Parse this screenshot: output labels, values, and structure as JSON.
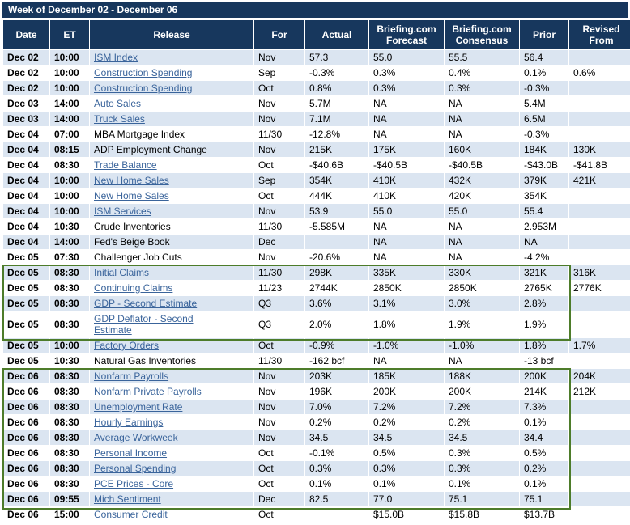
{
  "title": "Week of December 02 - December 06",
  "columns": [
    "Date",
    "ET",
    "Release",
    "For",
    "Actual",
    "Briefing.com\nForecast",
    "Briefing.com\nConsensus",
    "Prior",
    "Revised\nFrom"
  ],
  "colors": {
    "header_bg": "#17375D",
    "row_alt_blue": "#DBE5F1",
    "row_white": "#FFFFFF",
    "link_blue": "#3A649B",
    "highlight_green": "#4d7c2a"
  },
  "rows": [
    {
      "date": "Dec 02",
      "et": "10:00",
      "release": "ISM Index",
      "link": true,
      "for": "Nov",
      "actual": "57.3",
      "forecast": "55.0",
      "consensus": "55.5",
      "prior": "56.4",
      "revised": ""
    },
    {
      "date": "Dec 02",
      "et": "10:00",
      "release": "Construction Spending",
      "link": true,
      "for": "Sep",
      "actual": "-0.3%",
      "forecast": "0.3%",
      "consensus": "0.4%",
      "prior": "0.1%",
      "revised": "0.6%"
    },
    {
      "date": "Dec 02",
      "et": "10:00",
      "release": "Construction Spending",
      "link": true,
      "for": "Oct",
      "actual": "0.8%",
      "forecast": "0.3%",
      "consensus": "0.3%",
      "prior": "-0.3%",
      "revised": ""
    },
    {
      "date": "Dec 03",
      "et": "14:00",
      "release": "Auto Sales",
      "link": true,
      "for": "Nov",
      "actual": "5.7M",
      "forecast": "NA",
      "consensus": "NA",
      "prior": "5.4M",
      "revised": ""
    },
    {
      "date": "Dec 03",
      "et": "14:00",
      "release": "Truck Sales",
      "link": true,
      "for": "Nov",
      "actual": "7.1M",
      "forecast": "NA",
      "consensus": "NA",
      "prior": "6.5M",
      "revised": ""
    },
    {
      "date": "Dec 04",
      "et": "07:00",
      "release": "MBA Mortgage Index",
      "link": false,
      "for": "11/30",
      "actual": "-12.8%",
      "forecast": "NA",
      "consensus": "NA",
      "prior": "-0.3%",
      "revised": ""
    },
    {
      "date": "Dec 04",
      "et": "08:15",
      "release": "ADP Employment Change",
      "link": false,
      "for": "Nov",
      "actual": "215K",
      "forecast": "175K",
      "consensus": "160K",
      "prior": "184K",
      "revised": "130K"
    },
    {
      "date": "Dec 04",
      "et": "08:30",
      "release": "Trade Balance",
      "link": true,
      "for": "Oct",
      "actual": "-$40.6B",
      "forecast": "-$40.5B",
      "consensus": "-$40.5B",
      "prior": "-$43.0B",
      "revised": "-$41.8B"
    },
    {
      "date": "Dec 04",
      "et": "10:00",
      "release": "New Home Sales",
      "link": true,
      "for": "Sep",
      "actual": "354K",
      "forecast": "410K",
      "consensus": "432K",
      "prior": "379K",
      "revised": "421K"
    },
    {
      "date": "Dec 04",
      "et": "10:00",
      "release": "New Home Sales",
      "link": true,
      "for": "Oct",
      "actual": "444K",
      "forecast": "410K",
      "consensus": "420K",
      "prior": "354K",
      "revised": ""
    },
    {
      "date": "Dec 04",
      "et": "10:00",
      "release": "ISM Services",
      "link": true,
      "for": "Nov",
      "actual": "53.9",
      "forecast": "55.0",
      "consensus": "55.0",
      "prior": "55.4",
      "revised": ""
    },
    {
      "date": "Dec 04",
      "et": "10:30",
      "release": "Crude Inventories",
      "link": false,
      "for": "11/30",
      "actual": "-5.585M",
      "forecast": "NA",
      "consensus": "NA",
      "prior": "2.953M",
      "revised": ""
    },
    {
      "date": "Dec 04",
      "et": "14:00",
      "release": "Fed's Beige Book",
      "link": false,
      "for": "Dec",
      "actual": "",
      "forecast": "NA",
      "consensus": "NA",
      "prior": "NA",
      "revised": ""
    },
    {
      "date": "Dec 05",
      "et": "07:30",
      "release": "Challenger Job Cuts",
      "link": false,
      "for": "Nov",
      "actual": "-20.6%",
      "forecast": "NA",
      "consensus": "NA",
      "prior": "-4.2%",
      "revised": ""
    },
    {
      "date": "Dec 05",
      "et": "08:30",
      "release": "Initial Claims",
      "link": true,
      "for": "11/30",
      "actual": "298K",
      "forecast": "335K",
      "consensus": "330K",
      "prior": "321K",
      "revised": "316K"
    },
    {
      "date": "Dec 05",
      "et": "08:30",
      "release": "Continuing Claims",
      "link": true,
      "for": "11/23",
      "actual": "2744K",
      "forecast": "2850K",
      "consensus": "2850K",
      "prior": "2765K",
      "revised": "2776K"
    },
    {
      "date": "Dec 05",
      "et": "08:30",
      "release": "GDP - Second Estimate",
      "link": true,
      "for": "Q3",
      "actual": "3.6%",
      "forecast": "3.1%",
      "consensus": "3.0%",
      "prior": "2.8%",
      "revised": ""
    },
    {
      "date": "Dec 05",
      "et": "08:30",
      "release": "GDP Deflator - Second\nEstimate",
      "link": true,
      "for": "Q3",
      "actual": "2.0%",
      "forecast": "1.8%",
      "consensus": "1.9%",
      "prior": "1.9%",
      "revised": ""
    },
    {
      "date": "Dec 05",
      "et": "10:00",
      "release": "Factory Orders",
      "link": true,
      "for": "Oct",
      "actual": "-0.9%",
      "forecast": "-1.0%",
      "consensus": "-1.0%",
      "prior": "1.8%",
      "revised": "1.7%"
    },
    {
      "date": "Dec 05",
      "et": "10:30",
      "release": "Natural Gas Inventories",
      "link": false,
      "for": "11/30",
      "actual": "-162 bcf",
      "forecast": "NA",
      "consensus": "NA",
      "prior": "-13 bcf",
      "revised": ""
    },
    {
      "date": "Dec 06",
      "et": "08:30",
      "release": "Nonfarm Payrolls",
      "link": true,
      "for": "Nov",
      "actual": "203K",
      "forecast": "185K",
      "consensus": "188K",
      "prior": "200K",
      "revised": "204K"
    },
    {
      "date": "Dec 06",
      "et": "08:30",
      "release": "Nonfarm Private Payrolls",
      "link": true,
      "for": "Nov",
      "actual": "196K",
      "forecast": "200K",
      "consensus": "200K",
      "prior": "214K",
      "revised": "212K"
    },
    {
      "date": "Dec 06",
      "et": "08:30",
      "release": "Unemployment Rate",
      "link": true,
      "for": "Nov",
      "actual": "7.0%",
      "forecast": "7.2%",
      "consensus": "7.2%",
      "prior": "7.3%",
      "revised": ""
    },
    {
      "date": "Dec 06",
      "et": "08:30",
      "release": "Hourly Earnings",
      "link": true,
      "for": "Nov",
      "actual": "0.2%",
      "forecast": "0.2%",
      "consensus": "0.2%",
      "prior": "0.1%",
      "revised": ""
    },
    {
      "date": "Dec 06",
      "et": "08:30",
      "release": "Average Workweek",
      "link": true,
      "for": "Nov",
      "actual": "34.5",
      "forecast": "34.5",
      "consensus": "34.5",
      "prior": "34.4",
      "revised": ""
    },
    {
      "date": "Dec 06",
      "et": "08:30",
      "release": "Personal Income",
      "link": true,
      "for": "Oct",
      "actual": "-0.1%",
      "forecast": "0.5%",
      "consensus": "0.3%",
      "prior": "0.5%",
      "revised": ""
    },
    {
      "date": "Dec 06",
      "et": "08:30",
      "release": "Personal Spending",
      "link": true,
      "for": "Oct",
      "actual": "0.3%",
      "forecast": "0.3%",
      "consensus": "0.3%",
      "prior": "0.2%",
      "revised": ""
    },
    {
      "date": "Dec 06",
      "et": "08:30",
      "release": "PCE Prices - Core",
      "link": true,
      "for": "Oct",
      "actual": "0.1%",
      "forecast": "0.1%",
      "consensus": "0.1%",
      "prior": "0.1%",
      "revised": ""
    },
    {
      "date": "Dec 06",
      "et": "09:55",
      "release": "Mich Sentiment",
      "link": true,
      "for": "Dec",
      "actual": "82.5",
      "forecast": "77.0",
      "consensus": "75.1",
      "prior": "75.1",
      "revised": ""
    },
    {
      "date": "Dec 06",
      "et": "15:00",
      "release": "Consumer Credit",
      "link": true,
      "for": "Oct",
      "actual": "",
      "forecast": "$15.0B",
      "consensus": "$15.8B",
      "prior": "$13.7B",
      "revised": ""
    }
  ],
  "highlights": {
    "color": "#4d7c2a",
    "boxes": [
      {
        "from_row": 14,
        "to_row": 17
      },
      {
        "from_row": 20,
        "to_row": 28
      }
    ]
  }
}
